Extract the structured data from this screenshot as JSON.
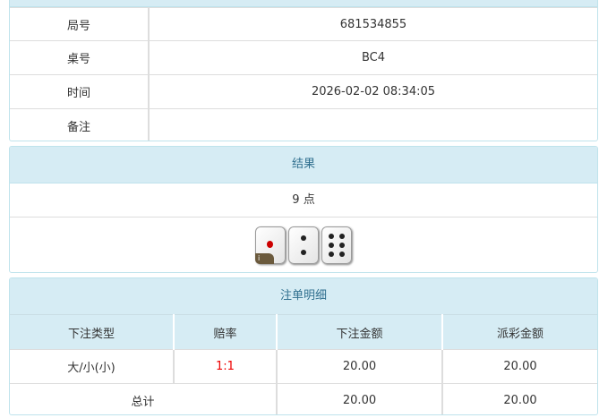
{
  "info": {
    "rows": [
      {
        "label": "局号",
        "value": "681534855"
      },
      {
        "label": "桌号",
        "value": "BC4"
      },
      {
        "label": "时间",
        "value": "2026-02-02 08:34:05"
      },
      {
        "label": "备注",
        "value": ""
      }
    ]
  },
  "result": {
    "title": "结果",
    "points": "9 点",
    "dice": [
      1,
      2,
      6
    ],
    "badge": "i"
  },
  "bets": {
    "title": "注单明细",
    "headers": [
      "下注类型",
      "赔率",
      "下注金额",
      "派彩金额"
    ],
    "rows": [
      {
        "type": "大/小(小)",
        "odds": "1:1",
        "amount": "20.00",
        "payout": "20.00"
      }
    ],
    "total": {
      "label": "总计",
      "amount": "20.00",
      "payout": "20.00"
    },
    "odds_color": "#ee0000"
  }
}
